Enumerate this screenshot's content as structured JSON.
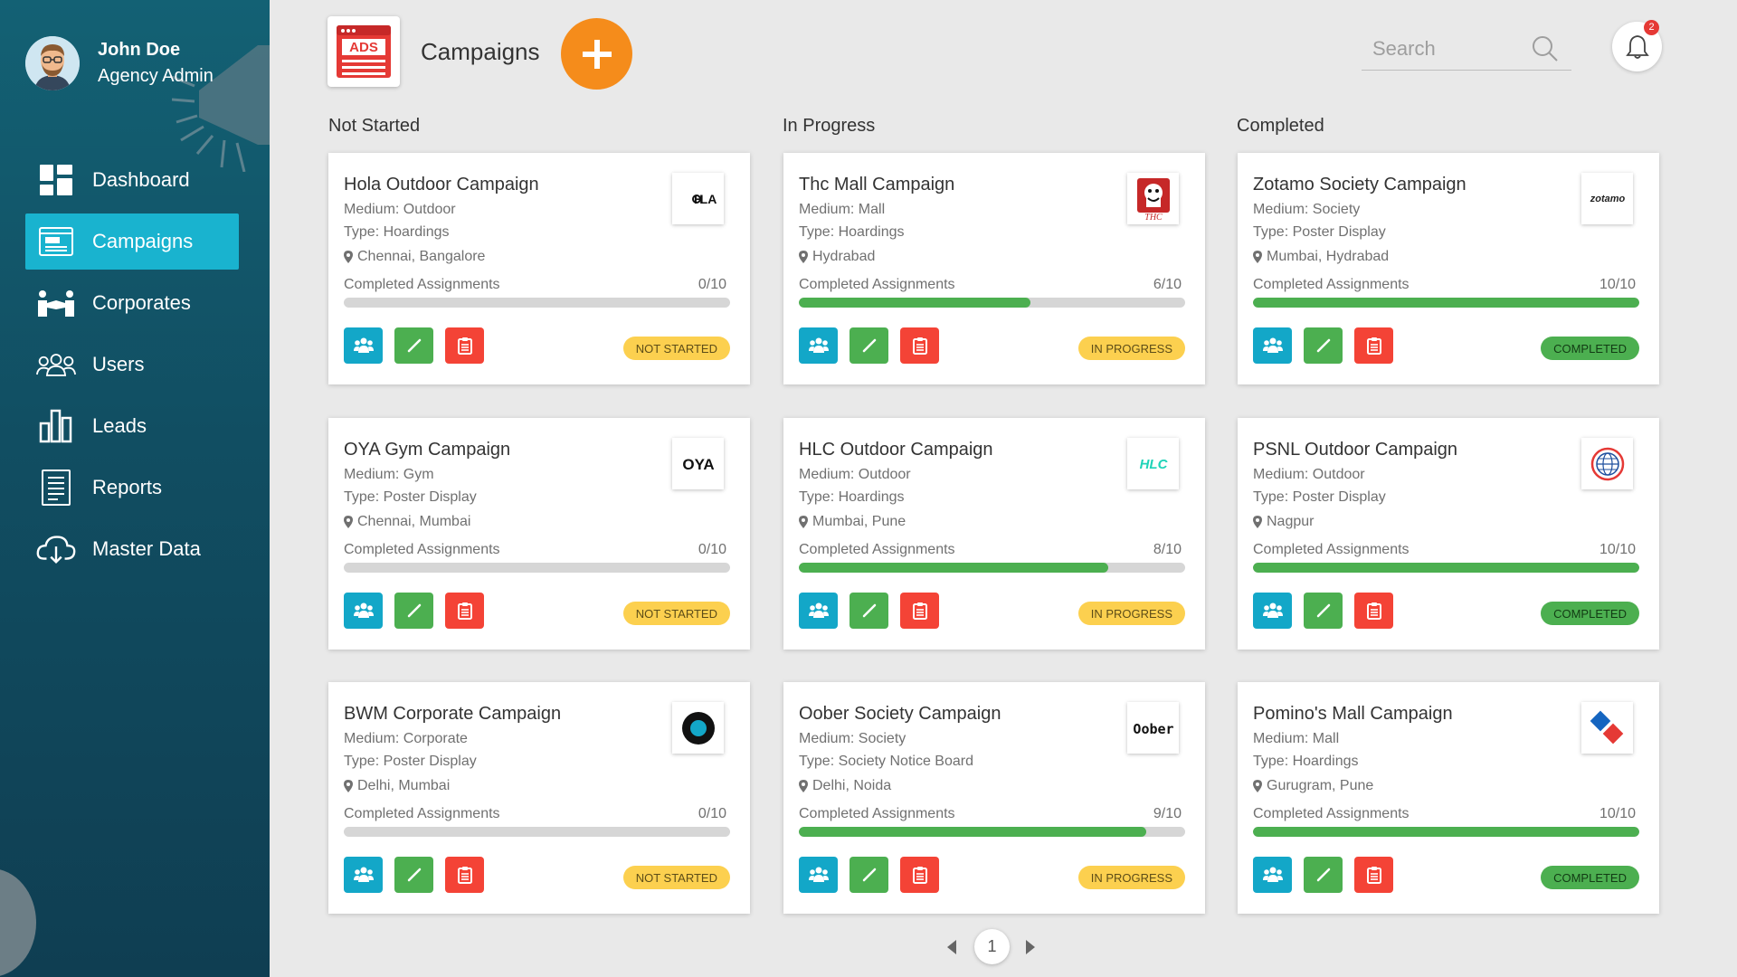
{
  "user": {
    "name": "John Doe",
    "role": "Agency Admin"
  },
  "nav": [
    {
      "label": "Dashboard",
      "icon": "dashboard-icon"
    },
    {
      "label": "Campaigns",
      "icon": "ads-icon",
      "active": true
    },
    {
      "label": "Corporates",
      "icon": "handshake-icon"
    },
    {
      "label": "Users",
      "icon": "users-icon"
    },
    {
      "label": "Leads",
      "icon": "bar-chart-icon"
    },
    {
      "label": "Reports",
      "icon": "document-icon"
    },
    {
      "label": "Master Data",
      "icon": "cloud-download-icon"
    }
  ],
  "header": {
    "logo_text": "ADS",
    "title": "Campaigns",
    "search_placeholder": "Search",
    "notification_count": "2"
  },
  "columns": [
    "Not Started",
    "In Progress",
    "Completed"
  ],
  "progress_label": "Completed Assignments",
  "status_labels": {
    "not": "NOT STARTED",
    "prog": "IN PROGRESS",
    "done": "COMPLETED"
  },
  "colors": {
    "sidebar": "#136174",
    "accent": "#19b3cf",
    "add": "#f58c1b",
    "team": "#13a7c8",
    "edit": "#4caf50",
    "clipboard": "#f44336",
    "progress": "#4caf50",
    "badge_yellow": "#fcd04f"
  },
  "campaigns": [
    {
      "name": "Hola Outdoor Campaign",
      "medium": "Medium: Outdoor",
      "type": "Type: Hoardings",
      "location": "Chennai, Bangalore",
      "count": "0/10",
      "progress": 0,
      "status": "NOT STARTED",
      "logo": "HOLA"
    },
    {
      "name": "Thc Mall Campaign",
      "medium": "Medium: Mall",
      "type": "Type: Hoardings",
      "location": "Hydrabad",
      "count": "6/10",
      "progress": 0.6,
      "status": "IN PROGRESS",
      "logo": "THC"
    },
    {
      "name": "Zotamo Society Campaign",
      "medium": "Medium: Society",
      "type": "Type: Poster Display",
      "location": "Mumbai, Hydrabad",
      "count": "10/10",
      "progress": 1.0,
      "status": "COMPLETED",
      "logo": "zotamo"
    },
    {
      "name": "OYA Gym Campaign",
      "medium": "Medium: Gym",
      "type": "Type: Poster Display",
      "location": "Chennai, Mumbai",
      "count": "0/10",
      "progress": 0,
      "status": "NOT STARTED",
      "logo": "OYA"
    },
    {
      "name": "HLC Outdoor Campaign",
      "medium": "Medium: Outdoor",
      "type": "Type: Hoardings",
      "location": "Mumbai, Pune",
      "count": "8/10",
      "progress": 0.8,
      "status": "IN PROGRESS",
      "logo": "HLC"
    },
    {
      "name": "PSNL Outdoor Campaign",
      "medium": "Medium: Outdoor",
      "type": "Type: Poster Display",
      "location": "Nagpur",
      "count": "10/10",
      "progress": 1.0,
      "status": "COMPLETED",
      "logo": ""
    },
    {
      "name": "BWM Corporate Campaign",
      "medium": "Medium: Corporate",
      "type": "Type: Poster Display",
      "location": "Delhi, Mumbai",
      "count": "0/10",
      "progress": 0,
      "status": "NOT STARTED",
      "logo": ""
    },
    {
      "name": "Oober Society Campaign",
      "medium": "Medium: Society",
      "type": "Type: Society Notice Board",
      "location": "Delhi, Noida",
      "count": "9/10",
      "progress": 0.9,
      "status": "IN PROGRESS",
      "logo": "Oober"
    },
    {
      "name": "Pomino's Mall Campaign",
      "medium": "Medium: Mall",
      "type": "Type: Hoardings",
      "location": "Gurugram, Pune",
      "count": "10/10",
      "progress": 1.0,
      "status": "COMPLETED",
      "logo": ""
    }
  ],
  "pagination": {
    "current": "1"
  }
}
